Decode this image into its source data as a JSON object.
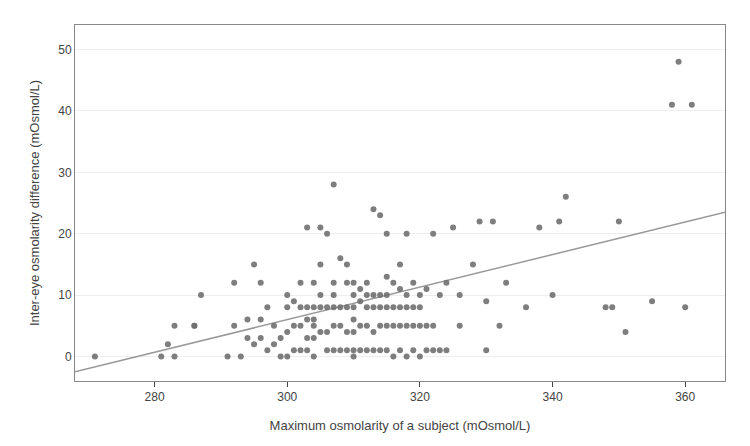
{
  "chart_data": {
    "type": "scatter",
    "xlabel": "Maximum osmolarity of a subject (mOsmol/L)",
    "ylabel": "Inter-eye osmolarity difference (mOsmol/L)",
    "xlim": [
      268,
      366
    ],
    "ylim": [
      -4,
      54
    ],
    "xticks": [
      280,
      300,
      320,
      340,
      360
    ],
    "yticks": [
      0,
      10,
      20,
      30,
      40,
      50
    ],
    "grid": "y",
    "series": [
      {
        "type": "scatter",
        "marker": "circle",
        "color": "#707070",
        "x": [
          271,
          281,
          282,
          283,
          283,
          286,
          286,
          287,
          291,
          292,
          292,
          293,
          294,
          294,
          295,
          295,
          296,
          296,
          296,
          297,
          297,
          298,
          298,
          299,
          299,
          300,
          300,
          300,
          300,
          301,
          301,
          301,
          302,
          302,
          302,
          302,
          303,
          303,
          303,
          303,
          303,
          304,
          304,
          304,
          304,
          304,
          304,
          305,
          305,
          305,
          305,
          305,
          306,
          306,
          306,
          306,
          307,
          307,
          307,
          307,
          307,
          307,
          308,
          308,
          308,
          308,
          309,
          309,
          309,
          309,
          309,
          310,
          310,
          310,
          310,
          310,
          310,
          310,
          311,
          311,
          311,
          311,
          312,
          312,
          312,
          312,
          312,
          313,
          313,
          313,
          313,
          313,
          314,
          314,
          314,
          314,
          314,
          315,
          315,
          315,
          315,
          315,
          315,
          316,
          316,
          316,
          316,
          317,
          317,
          317,
          317,
          317,
          318,
          318,
          318,
          318,
          318,
          319,
          319,
          319,
          319,
          320,
          320,
          320,
          320,
          321,
          321,
          321,
          322,
          322,
          322,
          323,
          323,
          324,
          324,
          325,
          326,
          326,
          328,
          329,
          330,
          330,
          331,
          332,
          333,
          336,
          338,
          340,
          341,
          342,
          348,
          349,
          350,
          351,
          355,
          358,
          359,
          360,
          361
        ],
        "values": [
          0,
          0,
          2,
          0,
          5,
          5,
          5,
          10,
          0,
          5,
          12,
          0,
          3,
          6,
          2,
          15,
          3,
          6,
          12,
          1,
          8,
          2,
          5,
          0,
          3,
          0,
          4,
          8,
          10,
          1,
          5,
          9,
          1,
          5,
          8,
          12,
          1,
          3,
          6,
          8,
          21,
          0,
          3,
          6,
          8,
          12,
          5,
          4,
          8,
          10,
          15,
          21,
          1,
          4,
          8,
          20,
          1,
          5,
          8,
          10,
          12,
          28,
          1,
          5,
          8,
          16,
          1,
          4,
          8,
          12,
          15,
          0,
          1,
          4,
          6,
          8,
          10,
          12,
          1,
          5,
          9,
          11,
          1,
          5,
          8,
          10,
          12,
          1,
          4,
          8,
          10,
          24,
          1,
          5,
          8,
          10,
          23,
          1,
          5,
          8,
          10,
          13,
          20,
          0,
          5,
          8,
          12,
          1,
          5,
          8,
          11,
          15,
          0,
          5,
          8,
          10,
          20,
          1,
          5,
          8,
          12,
          0,
          5,
          8,
          10,
          1,
          5,
          11,
          1,
          5,
          20,
          1,
          10,
          1,
          12,
          21,
          5,
          10,
          15,
          22,
          1,
          9,
          22,
          5,
          12,
          8,
          21,
          10,
          22,
          26,
          8,
          8,
          22,
          4,
          9,
          41,
          48,
          8,
          41
        ]
      },
      {
        "type": "line",
        "line_style": "solid",
        "color": "#999999",
        "x": [
          268,
          366
        ],
        "values": [
          -2.5,
          23.5
        ]
      }
    ]
  }
}
